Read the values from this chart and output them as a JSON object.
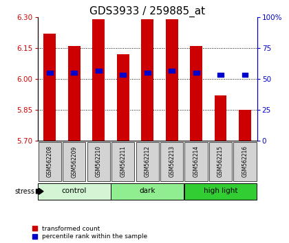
{
  "title": "GDS3933 / 259885_at",
  "samples": [
    "GSM562208",
    "GSM562209",
    "GSM562210",
    "GSM562211",
    "GSM562212",
    "GSM562213",
    "GSM562214",
    "GSM562215",
    "GSM562216"
  ],
  "bar_values": [
    6.22,
    6.16,
    6.29,
    6.12,
    6.29,
    6.29,
    6.16,
    5.92,
    5.85
  ],
  "percentile_values": [
    6.03,
    6.03,
    6.04,
    6.02,
    6.03,
    6.04,
    6.03,
    6.02,
    6.02
  ],
  "bar_color": "#cc0000",
  "blue_color": "#0000cc",
  "ymin": 5.7,
  "ymax": 6.3,
  "yticks": [
    5.7,
    5.85,
    6.0,
    6.15,
    6.3
  ],
  "right_yticks": [
    0,
    25,
    50,
    75,
    100
  ],
  "grid_values": [
    5.85,
    6.0,
    6.15
  ],
  "group_labels": [
    "control",
    "dark",
    "high light"
  ],
  "group_colors": [
    "#d4f5d4",
    "#90ee90",
    "#32cd32"
  ],
  "stress_label": "stress",
  "legend_red": "transformed count",
  "legend_blue": "percentile rank within the sample",
  "bar_width": 0.5
}
